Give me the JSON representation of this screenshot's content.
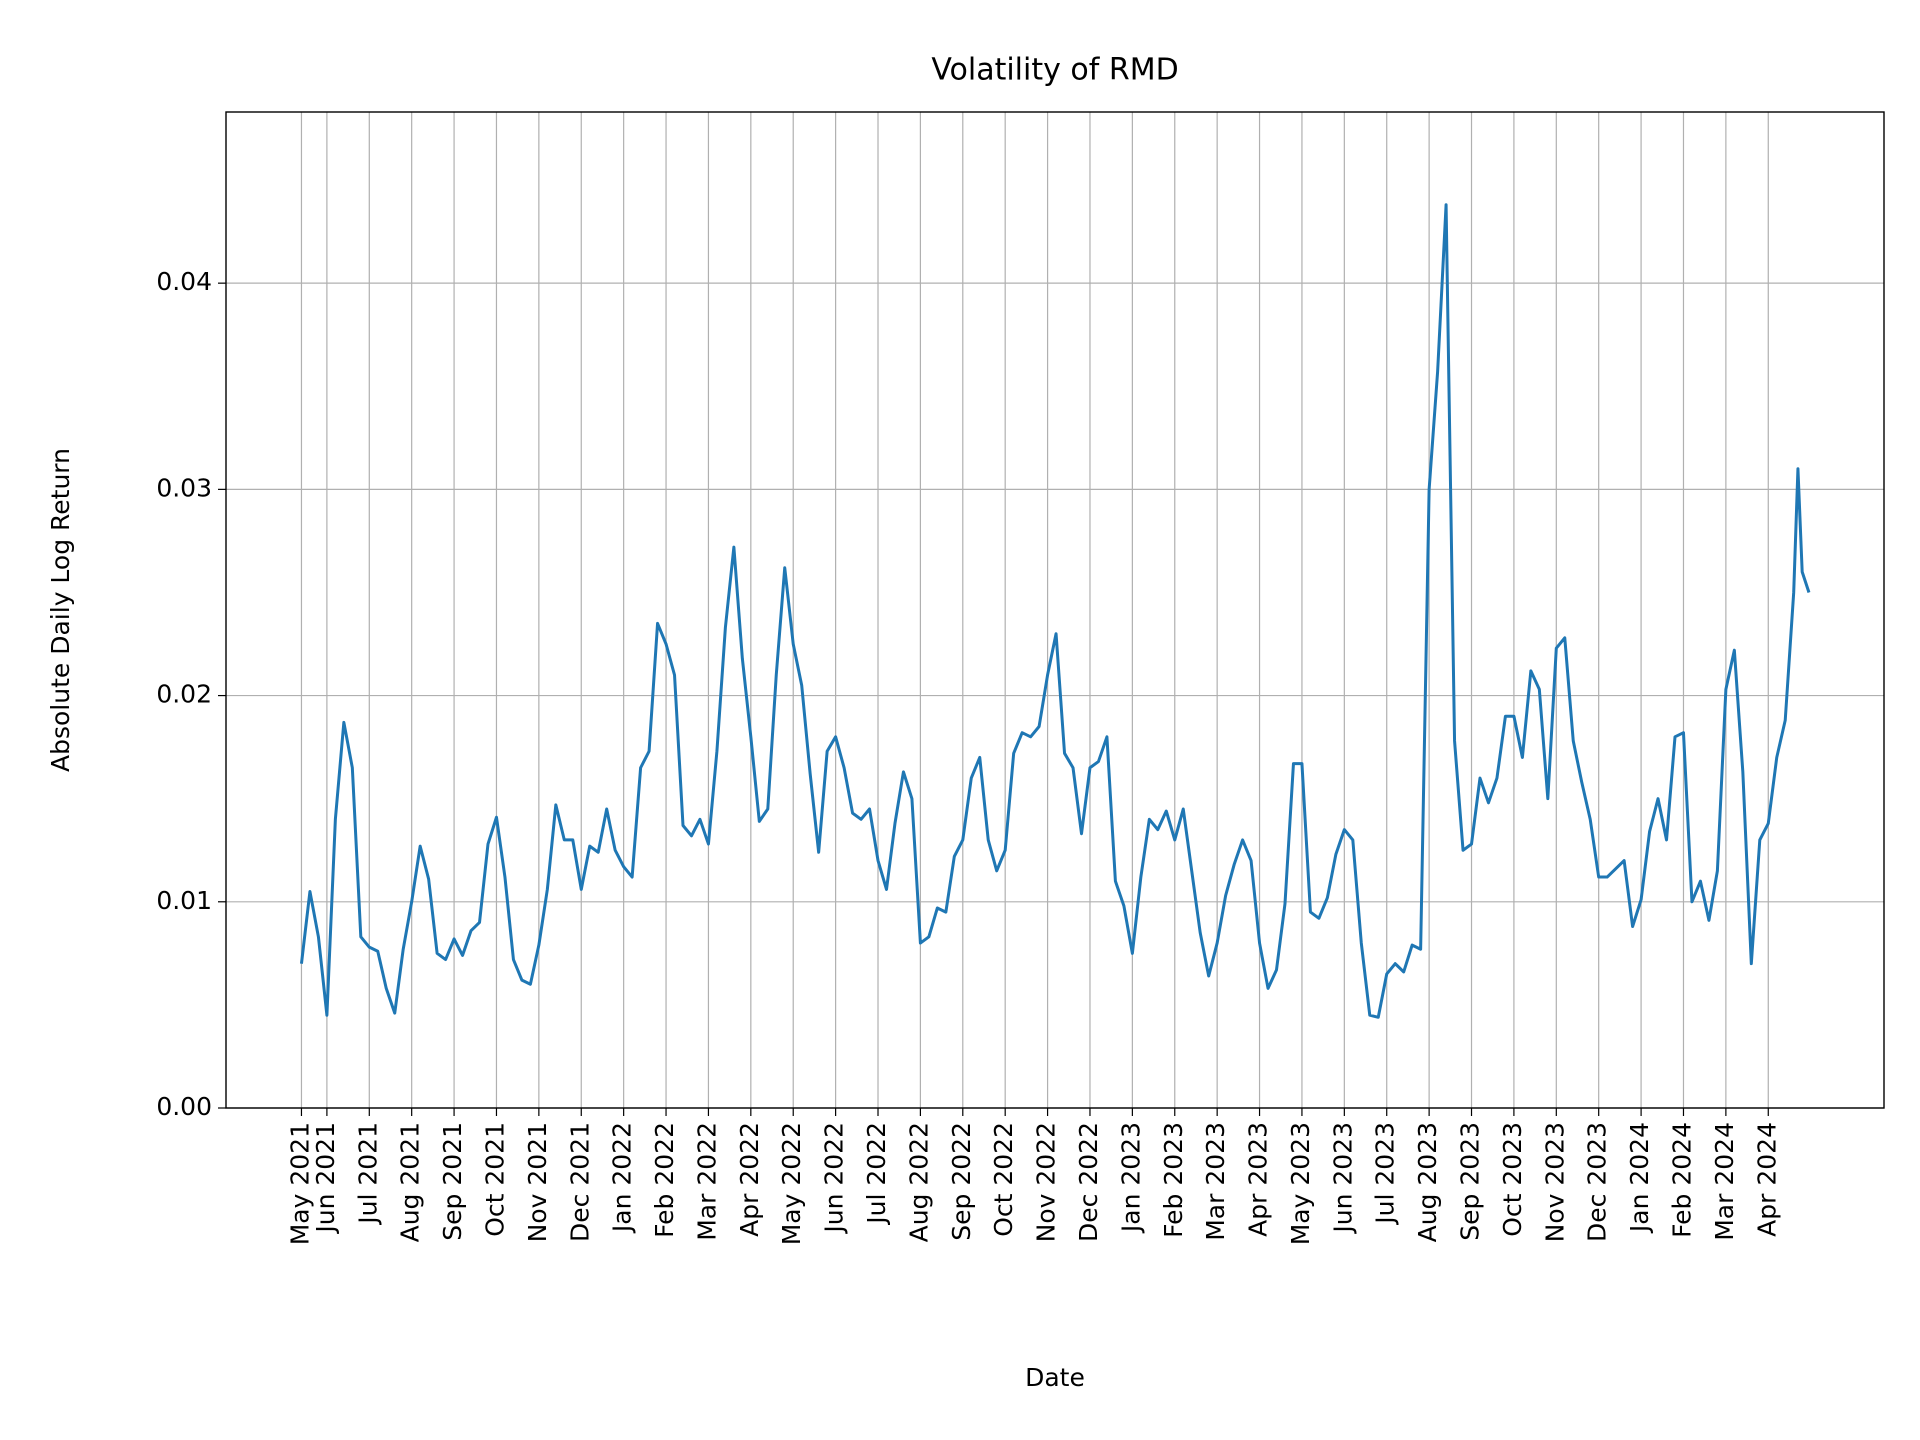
{
  "chart_data": {
    "type": "line",
    "title": "Volatility of RMD",
    "x_label": "Date",
    "y_label": "Absolute Daily Log Return",
    "color": "#1f77b4",
    "grid": true,
    "x": [
      0.4,
      0.6,
      0.8,
      1.0,
      1.2,
      1.4,
      1.6,
      1.8,
      2.0,
      2.2,
      2.4,
      2.6,
      2.8,
      3.0,
      3.2,
      3.4,
      3.6,
      3.8,
      4.0,
      4.2,
      4.4,
      4.6,
      4.8,
      5.0,
      5.2,
      5.4,
      5.6,
      5.8,
      6.0,
      6.2,
      6.4,
      6.6,
      6.8,
      7.0,
      7.2,
      7.4,
      7.6,
      7.8,
      8.0,
      8.2,
      8.4,
      8.6,
      8.8,
      9.0,
      9.2,
      9.4,
      9.6,
      9.8,
      10.0,
      10.2,
      10.4,
      10.6,
      10.8,
      11.0,
      11.2,
      11.4,
      11.6,
      11.8,
      12.0,
      12.2,
      12.4,
      12.6,
      12.8,
      13.0,
      13.2,
      13.4,
      13.6,
      13.8,
      14.0,
      14.2,
      14.4,
      14.6,
      14.8,
      15.0,
      15.2,
      15.4,
      15.6,
      15.8,
      16.0,
      16.2,
      16.4,
      16.6,
      16.8,
      17.0,
      17.2,
      17.4,
      17.6,
      17.8,
      18.0,
      18.2,
      18.4,
      18.6,
      18.8,
      19.0,
      19.2,
      19.4,
      19.6,
      19.8,
      20.0,
      20.2,
      20.4,
      20.6,
      20.8,
      21.0,
      21.2,
      21.4,
      21.6,
      21.8,
      22.0,
      22.2,
      22.4,
      22.6,
      22.8,
      23.0,
      23.2,
      23.4,
      23.6,
      23.8,
      24.0,
      24.2,
      24.4,
      24.6,
      24.8,
      25.0,
      25.2,
      25.4,
      25.6,
      25.8,
      26.0,
      26.2,
      26.4,
      26.6,
      26.8,
      27.0,
      27.2,
      27.4,
      27.6,
      27.8,
      28.0,
      28.2,
      28.4,
      28.6,
      28.8,
      29.0,
      29.2,
      29.4,
      29.6,
      29.8,
      30.0,
      30.2,
      30.4,
      30.6,
      30.8,
      31.0,
      31.2,
      31.4,
      31.6,
      31.8,
      32.0,
      32.2,
      32.4,
      32.6,
      32.8,
      33.0,
      33.2,
      33.4,
      33.6,
      33.8,
      34.0,
      34.2,
      34.4,
      34.6,
      34.8,
      35.0,
      35.2,
      35.4,
      35.6,
      35.7,
      35.8,
      35.96
    ],
    "values": [
      0.007,
      0.0105,
      0.0083,
      0.0045,
      0.014,
      0.0187,
      0.0165,
      0.0083,
      0.0078,
      0.0076,
      0.0058,
      0.0046,
      0.0077,
      0.01,
      0.0127,
      0.0111,
      0.0075,
      0.0072,
      0.0082,
      0.0074,
      0.0086,
      0.009,
      0.0128,
      0.0141,
      0.0112,
      0.0072,
      0.0062,
      0.006,
      0.0079,
      0.0106,
      0.0147,
      0.013,
      0.013,
      0.0106,
      0.0127,
      0.0124,
      0.0145,
      0.0125,
      0.0117,
      0.0112,
      0.0165,
      0.0173,
      0.0235,
      0.0225,
      0.021,
      0.0137,
      0.0132,
      0.014,
      0.0128,
      0.0173,
      0.0233,
      0.0272,
      0.0218,
      0.018,
      0.0139,
      0.0145,
      0.021,
      0.0262,
      0.0225,
      0.0205,
      0.0162,
      0.0124,
      0.0173,
      0.018,
      0.0165,
      0.0143,
      0.014,
      0.0145,
      0.012,
      0.0106,
      0.0138,
      0.0163,
      0.015,
      0.008,
      0.0083,
      0.0097,
      0.0095,
      0.0122,
      0.013,
      0.016,
      0.017,
      0.013,
      0.0115,
      0.0125,
      0.0172,
      0.0182,
      0.018,
      0.0185,
      0.021,
      0.023,
      0.0172,
      0.0165,
      0.0133,
      0.0165,
      0.0168,
      0.018,
      0.011,
      0.0098,
      0.0075,
      0.0112,
      0.014,
      0.0135,
      0.0144,
      0.013,
      0.0145,
      0.0115,
      0.0085,
      0.0064,
      0.008,
      0.0103,
      0.0118,
      0.013,
      0.012,
      0.008,
      0.0058,
      0.0067,
      0.0099,
      0.0167,
      0.0167,
      0.0095,
      0.0092,
      0.0102,
      0.0123,
      0.0135,
      0.013,
      0.008,
      0.0045,
      0.0044,
      0.0065,
      0.007,
      0.0066,
      0.0079,
      0.0077,
      0.03,
      0.0357,
      0.0438,
      0.0178,
      0.0125,
      0.0128,
      0.016,
      0.0148,
      0.016,
      0.019,
      0.019,
      0.017,
      0.0212,
      0.0203,
      0.015,
      0.0223,
      0.0228,
      0.0178,
      0.0158,
      0.014,
      0.0112,
      0.0112,
      0.0116,
      0.012,
      0.0088,
      0.0101,
      0.0134,
      0.015,
      0.013,
      0.018,
      0.0182,
      0.01,
      0.011,
      0.0091,
      0.0115,
      0.0203,
      0.0222,
      0.0163,
      0.007,
      0.013,
      0.0138,
      0.017,
      0.0188,
      0.025,
      0.031,
      0.026,
      0.025
    ],
    "xlim": [
      -1.38,
      37.73
    ],
    "xticks": [
      {
        "value": 0.4,
        "label": "May 2021"
      },
      {
        "value": 1,
        "label": "Jun 2021"
      },
      {
        "value": 2,
        "label": "Jul 2021"
      },
      {
        "value": 3,
        "label": "Aug 2021"
      },
      {
        "value": 4,
        "label": "Sep 2021"
      },
      {
        "value": 5,
        "label": "Oct 2021"
      },
      {
        "value": 6,
        "label": "Nov 2021"
      },
      {
        "value": 7,
        "label": "Dec 2021"
      },
      {
        "value": 8,
        "label": "Jan 2022"
      },
      {
        "value": 9,
        "label": "Feb 2022"
      },
      {
        "value": 10,
        "label": "Mar 2022"
      },
      {
        "value": 11,
        "label": "Apr 2022"
      },
      {
        "value": 12,
        "label": "May 2022"
      },
      {
        "value": 13,
        "label": "Jun 2022"
      },
      {
        "value": 14,
        "label": "Jul 2022"
      },
      {
        "value": 15,
        "label": "Aug 2022"
      },
      {
        "value": 16,
        "label": "Sep 2022"
      },
      {
        "value": 17,
        "label": "Oct 2022"
      },
      {
        "value": 18,
        "label": "Nov 2022"
      },
      {
        "value": 19,
        "label": "Dec 2022"
      },
      {
        "value": 20,
        "label": "Jan 2023"
      },
      {
        "value": 21,
        "label": "Feb 2023"
      },
      {
        "value": 22,
        "label": "Mar 2023"
      },
      {
        "value": 23,
        "label": "Apr 2023"
      },
      {
        "value": 24,
        "label": "May 2023"
      },
      {
        "value": 25,
        "label": "Jun 2023"
      },
      {
        "value": 26,
        "label": "Jul 2023"
      },
      {
        "value": 27,
        "label": "Aug 2023"
      },
      {
        "value": 28,
        "label": "Sep 2023"
      },
      {
        "value": 29,
        "label": "Oct 2023"
      },
      {
        "value": 30,
        "label": "Nov 2023"
      },
      {
        "value": 31,
        "label": "Dec 2023"
      },
      {
        "value": 32,
        "label": "Jan 2024"
      },
      {
        "value": 33,
        "label": "Feb 2024"
      },
      {
        "value": 34,
        "label": "Mar 2024"
      },
      {
        "value": 35,
        "label": "Apr 2024"
      }
    ],
    "ylim": [
      0,
      0.0483
    ],
    "yticks": [
      {
        "value": 0,
        "label": "0.00"
      },
      0.01,
      0.02,
      0.03,
      0.04
    ]
  }
}
